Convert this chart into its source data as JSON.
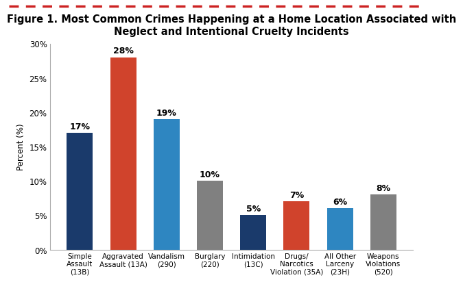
{
  "title": "Figure 1. Most Common Crimes Happening at a Home Location Associated with\nNeglect and Intentional Cruelty Incidents",
  "categories": [
    "Simple\nAssault\n(13B)",
    "Aggravated\nAssault (13A)",
    "Vandalism\n(290)",
    "Burglary\n(220)",
    "Intimidation\n(13C)",
    "Drugs/\nNarcotics\nViolation (35A)",
    "All Other\nLarceny\n(23H)",
    "Weapons\nViolations\n(520)"
  ],
  "values": [
    17,
    28,
    19,
    10,
    5,
    7,
    6,
    8
  ],
  "bar_colors": [
    "#1a3a6b",
    "#d0432c",
    "#2e86c1",
    "#808080",
    "#1a3a6b",
    "#d0432c",
    "#2e86c1",
    "#808080"
  ],
  "ylabel": "Percent (%)",
  "ylim": [
    0,
    30
  ],
  "yticks": [
    0,
    5,
    10,
    15,
    20,
    25,
    30
  ],
  "ytick_labels": [
    "0%",
    "5%",
    "10%",
    "15%",
    "20%",
    "25%",
    "30%"
  ],
  "bg_color": "#ffffff",
  "border_color": "#cc2222",
  "title_fontsize": 10.5,
  "label_fontsize": 8.5,
  "bar_label_fontsize": 9
}
